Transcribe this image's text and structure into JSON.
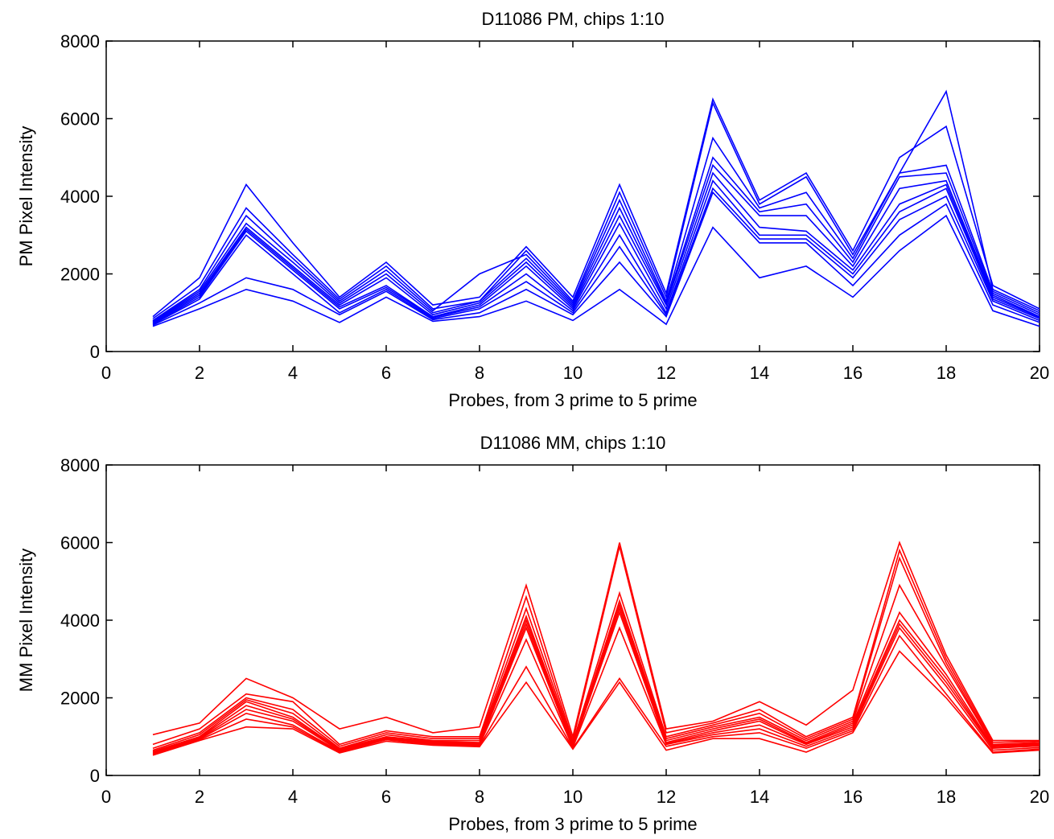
{
  "chart_data": [
    {
      "type": "line",
      "title": "D11086 PM, chips 1:10",
      "xlabel": "Probes, from 3 prime to 5 prime",
      "ylabel": "PM Pixel Intensity",
      "xlim": [
        0,
        20
      ],
      "ylim": [
        0,
        8000
      ],
      "xticks": [
        "0",
        "2",
        "4",
        "6",
        "8",
        "10",
        "12",
        "14",
        "16",
        "18",
        "20"
      ],
      "yticks": [
        "0",
        "2000",
        "4000",
        "6000",
        "8000"
      ],
      "grid": false,
      "color": "#0000ff",
      "x": [
        1,
        2,
        3,
        4,
        5,
        6,
        7,
        8,
        9,
        10,
        11,
        12,
        13,
        14,
        15,
        16,
        17,
        18,
        19,
        20
      ],
      "series": [
        {
          "values": [
            900,
            1900,
            4300,
            2800,
            1400,
            2300,
            1200,
            1400,
            2700,
            1400,
            4300,
            1500,
            6500,
            3900,
            4600,
            2600,
            5000,
            5800,
            1700,
            1100
          ]
        },
        {
          "values": [
            850,
            1700,
            3700,
            2500,
            1350,
            2200,
            1100,
            1300,
            2600,
            1300,
            4100,
            1400,
            6400,
            3800,
            4500,
            2500,
            4600,
            6700,
            1600,
            1050
          ]
        },
        {
          "values": [
            800,
            1600,
            3500,
            2400,
            1300,
            2100,
            1050,
            2000,
            2500,
            1250,
            3900,
            1300,
            5500,
            3700,
            4100,
            2400,
            4600,
            4800,
            1550,
            1000
          ]
        },
        {
          "values": [
            780,
            1550,
            3300,
            2300,
            1250,
            2000,
            1000,
            1300,
            2400,
            1200,
            3700,
            1250,
            5000,
            3600,
            3800,
            2300,
            4500,
            4600,
            1500,
            950
          ]
        },
        {
          "values": [
            760,
            1500,
            3200,
            2200,
            1200,
            1900,
            950,
            1250,
            2300,
            1150,
            3500,
            1200,
            4800,
            3500,
            3500,
            2200,
            4200,
            4400,
            1450,
            900
          ]
        },
        {
          "values": [
            740,
            1450,
            3150,
            2150,
            1150,
            1700,
            900,
            1200,
            2200,
            1100,
            3300,
            1100,
            4600,
            3200,
            3100,
            2100,
            3800,
            4300,
            1400,
            880
          ]
        },
        {
          "values": [
            720,
            1400,
            3100,
            2100,
            1100,
            1650,
            880,
            1150,
            2000,
            1050,
            3000,
            1000,
            4400,
            3000,
            3000,
            2000,
            3600,
            4200,
            1350,
            850
          ]
        },
        {
          "values": [
            700,
            1350,
            3000,
            2000,
            1000,
            1600,
            850,
            1100,
            1800,
            1000,
            2700,
            950,
            4200,
            2900,
            2900,
            1900,
            3400,
            4000,
            1300,
            800
          ]
        },
        {
          "values": [
            680,
            1250,
            1900,
            1600,
            950,
            1550,
            820,
            1000,
            1600,
            950,
            2300,
            900,
            4100,
            2800,
            2800,
            1700,
            3000,
            3800,
            1200,
            750
          ]
        },
        {
          "values": [
            650,
            1100,
            1600,
            1300,
            750,
            1400,
            780,
            900,
            1300,
            800,
            1600,
            700,
            3200,
            1900,
            2200,
            1400,
            2600,
            3500,
            1050,
            650
          ]
        }
      ]
    },
    {
      "type": "line",
      "title": "D11086 MM, chips 1:10",
      "xlabel": "Probes, from 3 prime to 5 prime",
      "ylabel": "MM Pixel Intensity",
      "xlim": [
        0,
        20
      ],
      "ylim": [
        0,
        8000
      ],
      "xticks": [
        "0",
        "2",
        "4",
        "6",
        "8",
        "10",
        "12",
        "14",
        "16",
        "18",
        "20"
      ],
      "yticks": [
        "0",
        "2000",
        "4000",
        "6000",
        "8000"
      ],
      "grid": false,
      "color": "#ff0000",
      "x": [
        1,
        2,
        3,
        4,
        5,
        6,
        7,
        8,
        9,
        10,
        11,
        12,
        13,
        14,
        15,
        16,
        17,
        18,
        19,
        20
      ],
      "series": [
        {
          "values": [
            1050,
            1350,
            2500,
            2000,
            1200,
            1500,
            1100,
            1250,
            4900,
            1000,
            6000,
            1200,
            1400,
            1900,
            1300,
            2200,
            6000,
            3100,
            900,
            900
          ]
        },
        {
          "values": [
            800,
            1200,
            2100,
            1900,
            800,
            1150,
            1000,
            1000,
            4600,
            900,
            5900,
            1100,
            1350,
            1700,
            1000,
            1500,
            5800,
            3000,
            850,
            880
          ]
        },
        {
          "values": [
            700,
            1100,
            2000,
            1700,
            750,
            1100,
            950,
            950,
            4300,
            850,
            4700,
            1000,
            1300,
            1600,
            950,
            1450,
            5600,
            2900,
            800,
            850
          ]
        },
        {
          "values": [
            650,
            1050,
            1950,
            1600,
            700,
            1050,
            900,
            900,
            4100,
            800,
            4500,
            950,
            1250,
            1500,
            900,
            1400,
            4900,
            2800,
            780,
            820
          ]
        },
        {
          "values": [
            620,
            1000,
            1900,
            1500,
            680,
            1000,
            880,
            850,
            4000,
            780,
            4400,
            900,
            1200,
            1450,
            850,
            1350,
            4200,
            2600,
            750,
            800
          ]
        },
        {
          "values": [
            600,
            980,
            1800,
            1450,
            660,
            980,
            860,
            820,
            3900,
            760,
            4300,
            850,
            1150,
            1400,
            820,
            1300,
            4000,
            2500,
            720,
            780
          ]
        },
        {
          "values": [
            580,
            960,
            1700,
            1400,
            640,
            960,
            840,
            800,
            3800,
            740,
            4200,
            820,
            1100,
            1300,
            800,
            1250,
            3900,
            2400,
            700,
            760
          ]
        },
        {
          "values": [
            560,
            940,
            1600,
            1300,
            620,
            940,
            820,
            780,
            3500,
            720,
            3800,
            800,
            1050,
            1200,
            750,
            1200,
            3800,
            2300,
            650,
            720
          ]
        },
        {
          "values": [
            540,
            920,
            1450,
            1250,
            600,
            920,
            800,
            760,
            2800,
            700,
            2500,
            750,
            1000,
            1100,
            700,
            1150,
            3600,
            2100,
            600,
            680
          ]
        },
        {
          "values": [
            520,
            900,
            1250,
            1200,
            580,
            880,
            780,
            740,
            2400,
            680,
            2400,
            650,
            950,
            950,
            600,
            1100,
            3200,
            2000,
            580,
            650
          ]
        }
      ]
    }
  ]
}
